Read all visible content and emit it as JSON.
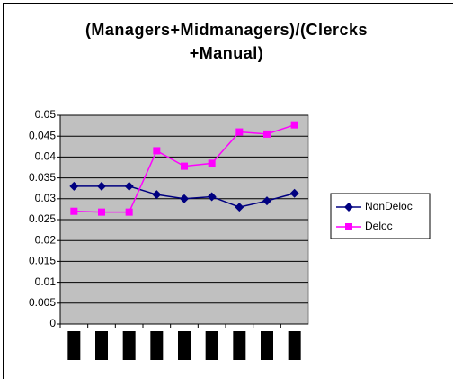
{
  "chart_data": {
    "type": "line",
    "title": "(Managers+Midmanagers)/(Clercks +Manual)",
    "categories": [
      null,
      null,
      null,
      null,
      null,
      null,
      null,
      null,
      null
    ],
    "series": [
      {
        "name": "NonDeloc",
        "color": "#000080",
        "values": [
          0.033,
          0.033,
          0.033,
          0.031,
          0.03,
          0.0305,
          0.028,
          0.0295,
          0.0313
        ]
      },
      {
        "name": "Deloc",
        "color": "#ff00ff",
        "values": [
          0.027,
          0.0268,
          0.0268,
          0.0415,
          0.0378,
          0.0385,
          0.046,
          0.0455,
          0.0477
        ]
      }
    ],
    "ylim": [
      0,
      0.05
    ],
    "yticks": [
      0,
      0.005,
      0.01,
      0.015,
      0.02,
      0.025,
      0.03,
      0.035,
      0.04,
      0.045,
      0.05
    ],
    "grid": true,
    "legend": "right"
  }
}
